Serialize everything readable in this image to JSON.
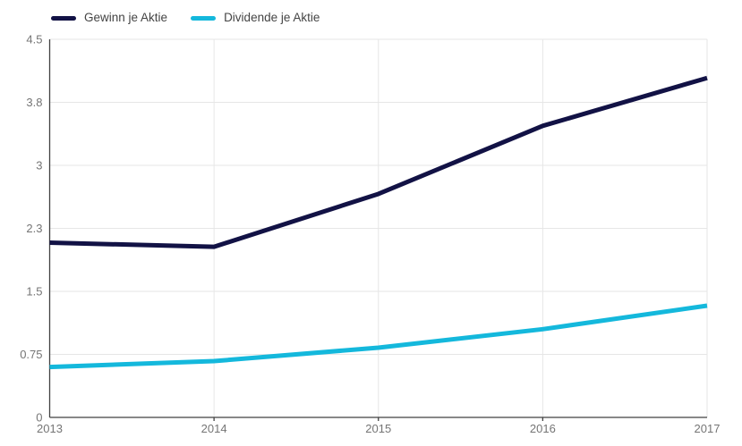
{
  "chart_data": {
    "type": "line",
    "title": "",
    "x": [
      "2013",
      "2014",
      "2015",
      "2016",
      "2017"
    ],
    "series": [
      {
        "name": "Gewinn je Aktie",
        "color": "#121245",
        "values": [
          2.08,
          2.03,
          2.66,
          3.47,
          4.04
        ]
      },
      {
        "name": "Dividende je Aktie",
        "color": "#14b8dc",
        "values": [
          0.6,
          0.67,
          0.83,
          1.05,
          1.33
        ]
      }
    ],
    "ylim": [
      0,
      4.5
    ],
    "y_ticks": [
      {
        "value": 0,
        "label": "0"
      },
      {
        "value": 0.75,
        "label": "0.75"
      },
      {
        "value": 1.5,
        "label": "1.5"
      },
      {
        "value": 2.25,
        "label": "2.3"
      },
      {
        "value": 3,
        "label": "3"
      },
      {
        "value": 3.75,
        "label": "3.8"
      },
      {
        "value": 4.5,
        "label": "4.5"
      }
    ],
    "grid": true,
    "legend_position": "top-left",
    "colors": {
      "grid_line": "#e6e6e6",
      "axis_line": "#424242",
      "axis_label": "#757575",
      "legend_text": "#444444",
      "background": "#ffffff"
    }
  }
}
